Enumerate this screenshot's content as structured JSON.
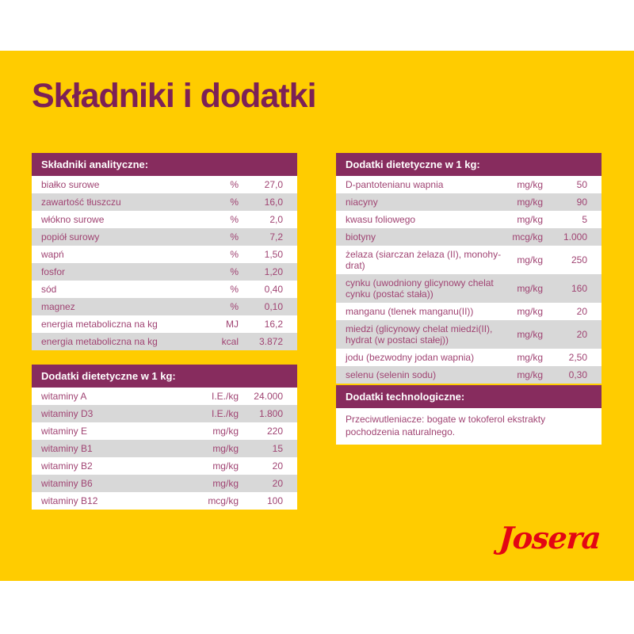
{
  "page": {
    "title": "Składniki i dodatki",
    "brand": "Josera",
    "colors": {
      "background_yellow": "#ffcc00",
      "table_header_purple": "#872c5e",
      "title_purple": "#7c2156",
      "row_text_purple": "#a04473",
      "row_alt_gray": "#d8d8d8",
      "brand_red": "#e30613"
    }
  },
  "tables": {
    "analytical": {
      "header": "Składniki analityczne:",
      "rows": [
        {
          "name": "białko surowe",
          "unit": "%",
          "value": "27,0"
        },
        {
          "name": "zawartość tłuszczu",
          "unit": "%",
          "value": "16,0"
        },
        {
          "name": "włókno surowe",
          "unit": "%",
          "value": "2,0"
        },
        {
          "name": "popiół surowy",
          "unit": "%",
          "value": "7,2"
        },
        {
          "name": "wapń",
          "unit": "%",
          "value": "1,50"
        },
        {
          "name": "fosfor",
          "unit": "%",
          "value": "1,20"
        },
        {
          "name": "sód",
          "unit": "%",
          "value": "0,40"
        },
        {
          "name": "magnez",
          "unit": "%",
          "value": "0,10"
        },
        {
          "name": "energia metaboliczna na kg",
          "unit": "MJ",
          "value": "16,2"
        },
        {
          "name": "energia metaboliczna na kg",
          "unit": "kcal",
          "value": "3.872"
        }
      ]
    },
    "dietary_left": {
      "header": "Dodatki dietetyczne w 1 kg:",
      "rows": [
        {
          "name": "witaminy A",
          "unit": "I.E./kg",
          "value": "24.000"
        },
        {
          "name": "witaminy D3",
          "unit": "I.E./kg",
          "value": "1.800"
        },
        {
          "name": "witaminy E",
          "unit": "mg/kg",
          "value": "220"
        },
        {
          "name": "witaminy B1",
          "unit": "mg/kg",
          "value": "15"
        },
        {
          "name": "witaminy B2",
          "unit": "mg/kg",
          "value": "20"
        },
        {
          "name": "witaminy B6",
          "unit": "mg/kg",
          "value": "20"
        },
        {
          "name": "witaminy B12",
          "unit": "mcg/kg",
          "value": "100"
        }
      ]
    },
    "dietary_right": {
      "header": "Dodatki dietetyczne w 1 kg:",
      "rows": [
        {
          "name": "D-pantotenianu wapnia",
          "unit": "mg/kg",
          "value": "50"
        },
        {
          "name": "niacyny",
          "unit": "mg/kg",
          "value": "90"
        },
        {
          "name": "kwasu foliowego",
          "unit": "mg/kg",
          "value": "5"
        },
        {
          "name": "biotyny",
          "unit": "mcg/kg",
          "value": "1.000"
        },
        {
          "name": "żelaza (siarczan żelaza (II), monohy-\ndrat)",
          "unit": "mg/kg",
          "value": "250"
        },
        {
          "name": "cynku (uwodniony glicynowy chelat\ncynku (postać stała))",
          "unit": "mg/kg",
          "value": "160"
        },
        {
          "name": "manganu (tlenek manganu(II))",
          "unit": "mg/kg",
          "value": "20"
        },
        {
          "name": "miedzi (glicynowy chelat miedzi(II),\nhydrat (w postaci stałej))",
          "unit": "mg/kg",
          "value": "20"
        },
        {
          "name": "jodu (bezwodny jodan wapnia)",
          "unit": "mg/kg",
          "value": "2,50"
        },
        {
          "name": "selenu (selenin sodu)",
          "unit": "mg/kg",
          "value": "0,30"
        }
      ]
    },
    "technological": {
      "header": "Dodatki technologiczne:",
      "text": "Przeciwutleniacze: bogate w tokoferol ekstrakty pochodzenia naturalnego."
    }
  }
}
